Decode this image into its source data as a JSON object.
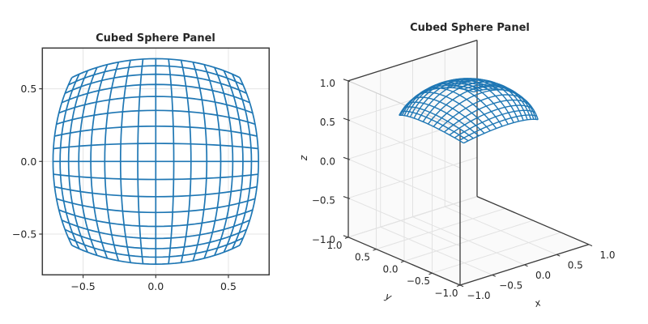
{
  "figure": {
    "background": "#ffffff"
  },
  "style": {
    "mesh_color": "#1f77b4",
    "grid_color": "#e4e4e4",
    "frame_color": "#3b3b3b",
    "pane_color": "#fafafa",
    "pane_edge_color": "#d8d8d8",
    "pane_grid_color": "#e2e2e2",
    "light_edge_color": "#cfcfcf",
    "text_color": "#262626"
  },
  "chart_data": [
    {
      "type": "wireframe",
      "projection": "2d",
      "title": "Cubed Sphere Panel",
      "surface": "cubed-sphere +z panel: (x,y,z) = (X, Y, 1)/sqrt(1+X^2+Y^2), X and Y uniform in [-1,1], projected to the x-y plane",
      "mesh": {
        "n_cells": 16,
        "param_range": [
          -1,
          1
        ],
        "sphere_radius": 1,
        "max_extent": 0.7071
      },
      "xlim": [
        -0.78,
        0.78
      ],
      "ylim": [
        -0.78,
        0.78
      ],
      "xticks": [
        -0.5,
        0.0,
        0.5
      ],
      "xtick_labels": [
        "−0.5",
        "0.0",
        "0.5"
      ],
      "yticks": [
        -0.5,
        0.0,
        0.5
      ],
      "ytick_labels": [
        "−0.5",
        "0.0",
        "0.5"
      ],
      "grid": true,
      "xlabel": "",
      "ylabel": ""
    },
    {
      "type": "wireframe",
      "projection": "3d",
      "title": "Cubed Sphere Panel",
      "surface": "cubed-sphere +z panel: (x,y,z) = (X, Y, 1)/sqrt(1+X^2+Y^2), X and Y uniform in [-1,1]",
      "mesh": {
        "n_cells": 16,
        "param_range": [
          -1,
          1
        ],
        "sphere_radius": 1
      },
      "xlabel": "x",
      "ylabel": "y",
      "zlabel": "z",
      "xlim": [
        -1,
        1
      ],
      "ylim": [
        -1,
        1
      ],
      "zlim": [
        -1,
        1
      ],
      "ticks": [
        -1.0,
        -0.5,
        0.0,
        0.5,
        1.0
      ],
      "tick_labels": [
        "−1.0",
        "−0.5",
        "0.0",
        "0.5",
        "1.0"
      ],
      "grid": true,
      "view": {
        "elev_deg": 24,
        "azim_deg": -131
      }
    }
  ]
}
